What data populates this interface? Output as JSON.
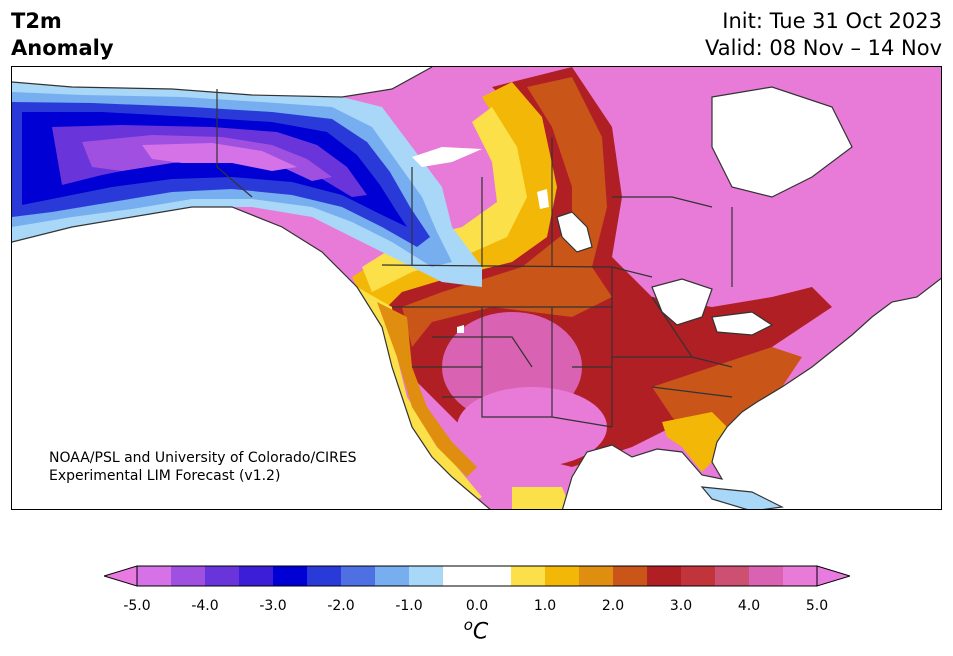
{
  "header": {
    "title_left": "T2m\nAnomaly",
    "init_text": "Init: Tue 31 Oct 2023",
    "valid_text": "Valid: 08 Nov – 14 Nov"
  },
  "credit": {
    "line1": "NOAA/PSL and University of Colorado/CIRES",
    "line2": "Experimental LIM Forecast (v1.2)"
  },
  "colorbar": {
    "unit_sup": "o",
    "unit_main": "C",
    "ticks": [
      "-5.0",
      "-4.0",
      "-3.0",
      "-2.0",
      "-1.0",
      "0.0",
      "1.0",
      "2.0",
      "3.0",
      "4.0",
      "5.0"
    ],
    "min_color": "#e87ae0",
    "max_color": "#e87ae0",
    "colors": [
      "#d572e8",
      "#9f50e0",
      "#6a34db",
      "#3c1ed6",
      "#0000d4",
      "#2a3ad9",
      "#4f70e3",
      "#76aeef",
      "#a8d7f7",
      "#ffffff",
      "#ffffff",
      "#fbe04a",
      "#f2b707",
      "#e08e10",
      "#c95518",
      "#b01f23",
      "#c2343c",
      "#cd4f72",
      "#da62b3",
      "#e87ad8"
    ]
  },
  "map": {
    "region": "North America",
    "variable": "2m temperature anomaly",
    "land_outline_color": "#333333"
  }
}
